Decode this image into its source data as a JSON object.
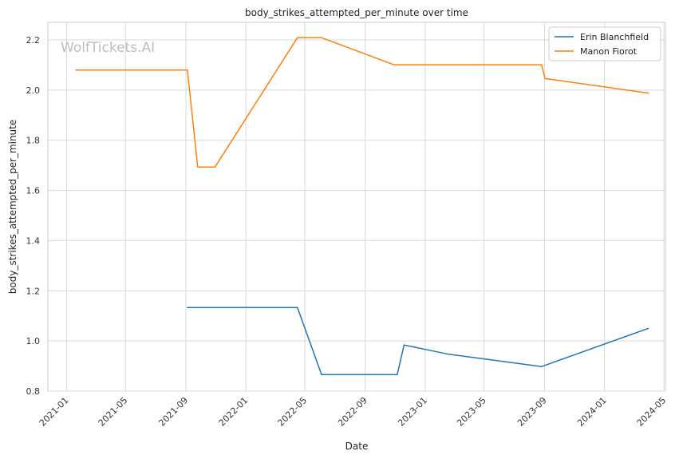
{
  "chart_data": {
    "type": "line",
    "title": "body_strikes_attempted_per_minute over time",
    "xlabel": "Date",
    "ylabel": "body_strikes_attempted_per_minute",
    "watermark": "WolfTickets.AI",
    "xlim": [
      "2020-11-24",
      "2024-05-04"
    ],
    "ylim": [
      0.8,
      2.27
    ],
    "x_ticks": [
      "2021-01",
      "2021-05",
      "2021-09",
      "2022-01",
      "2022-05",
      "2022-09",
      "2023-01",
      "2023-05",
      "2023-09",
      "2024-01",
      "2024-05"
    ],
    "y_ticks": [
      "0.8",
      "1.0",
      "1.2",
      "1.4",
      "1.6",
      "1.8",
      "2.0",
      "2.2"
    ],
    "grid": true,
    "legend_position": "top-right",
    "series": [
      {
        "name": "Erin Blanchfield",
        "color": "#1f77b4",
        "points": [
          [
            "2021-09-04",
            1.133
          ],
          [
            "2022-04-16",
            1.133
          ],
          [
            "2022-06-04",
            0.866
          ],
          [
            "2022-11-05",
            0.866
          ],
          [
            "2022-11-19",
            0.984
          ],
          [
            "2023-02-18",
            0.947
          ],
          [
            "2023-08-26",
            0.898
          ],
          [
            "2024-03-30",
            1.05
          ]
        ]
      },
      {
        "name": "Manon Fiorot",
        "color": "#ff7f0e",
        "points": [
          [
            "2021-01-20",
            2.08
          ],
          [
            "2021-09-04",
            2.08
          ],
          [
            "2021-09-25",
            1.693
          ],
          [
            "2021-10-30",
            1.693
          ],
          [
            "2022-04-16",
            2.209
          ],
          [
            "2022-06-04",
            2.209
          ],
          [
            "2022-10-29",
            2.101
          ],
          [
            "2023-08-26",
            2.101
          ],
          [
            "2023-09-02",
            2.046
          ],
          [
            "2024-03-30",
            1.988
          ]
        ]
      }
    ]
  }
}
